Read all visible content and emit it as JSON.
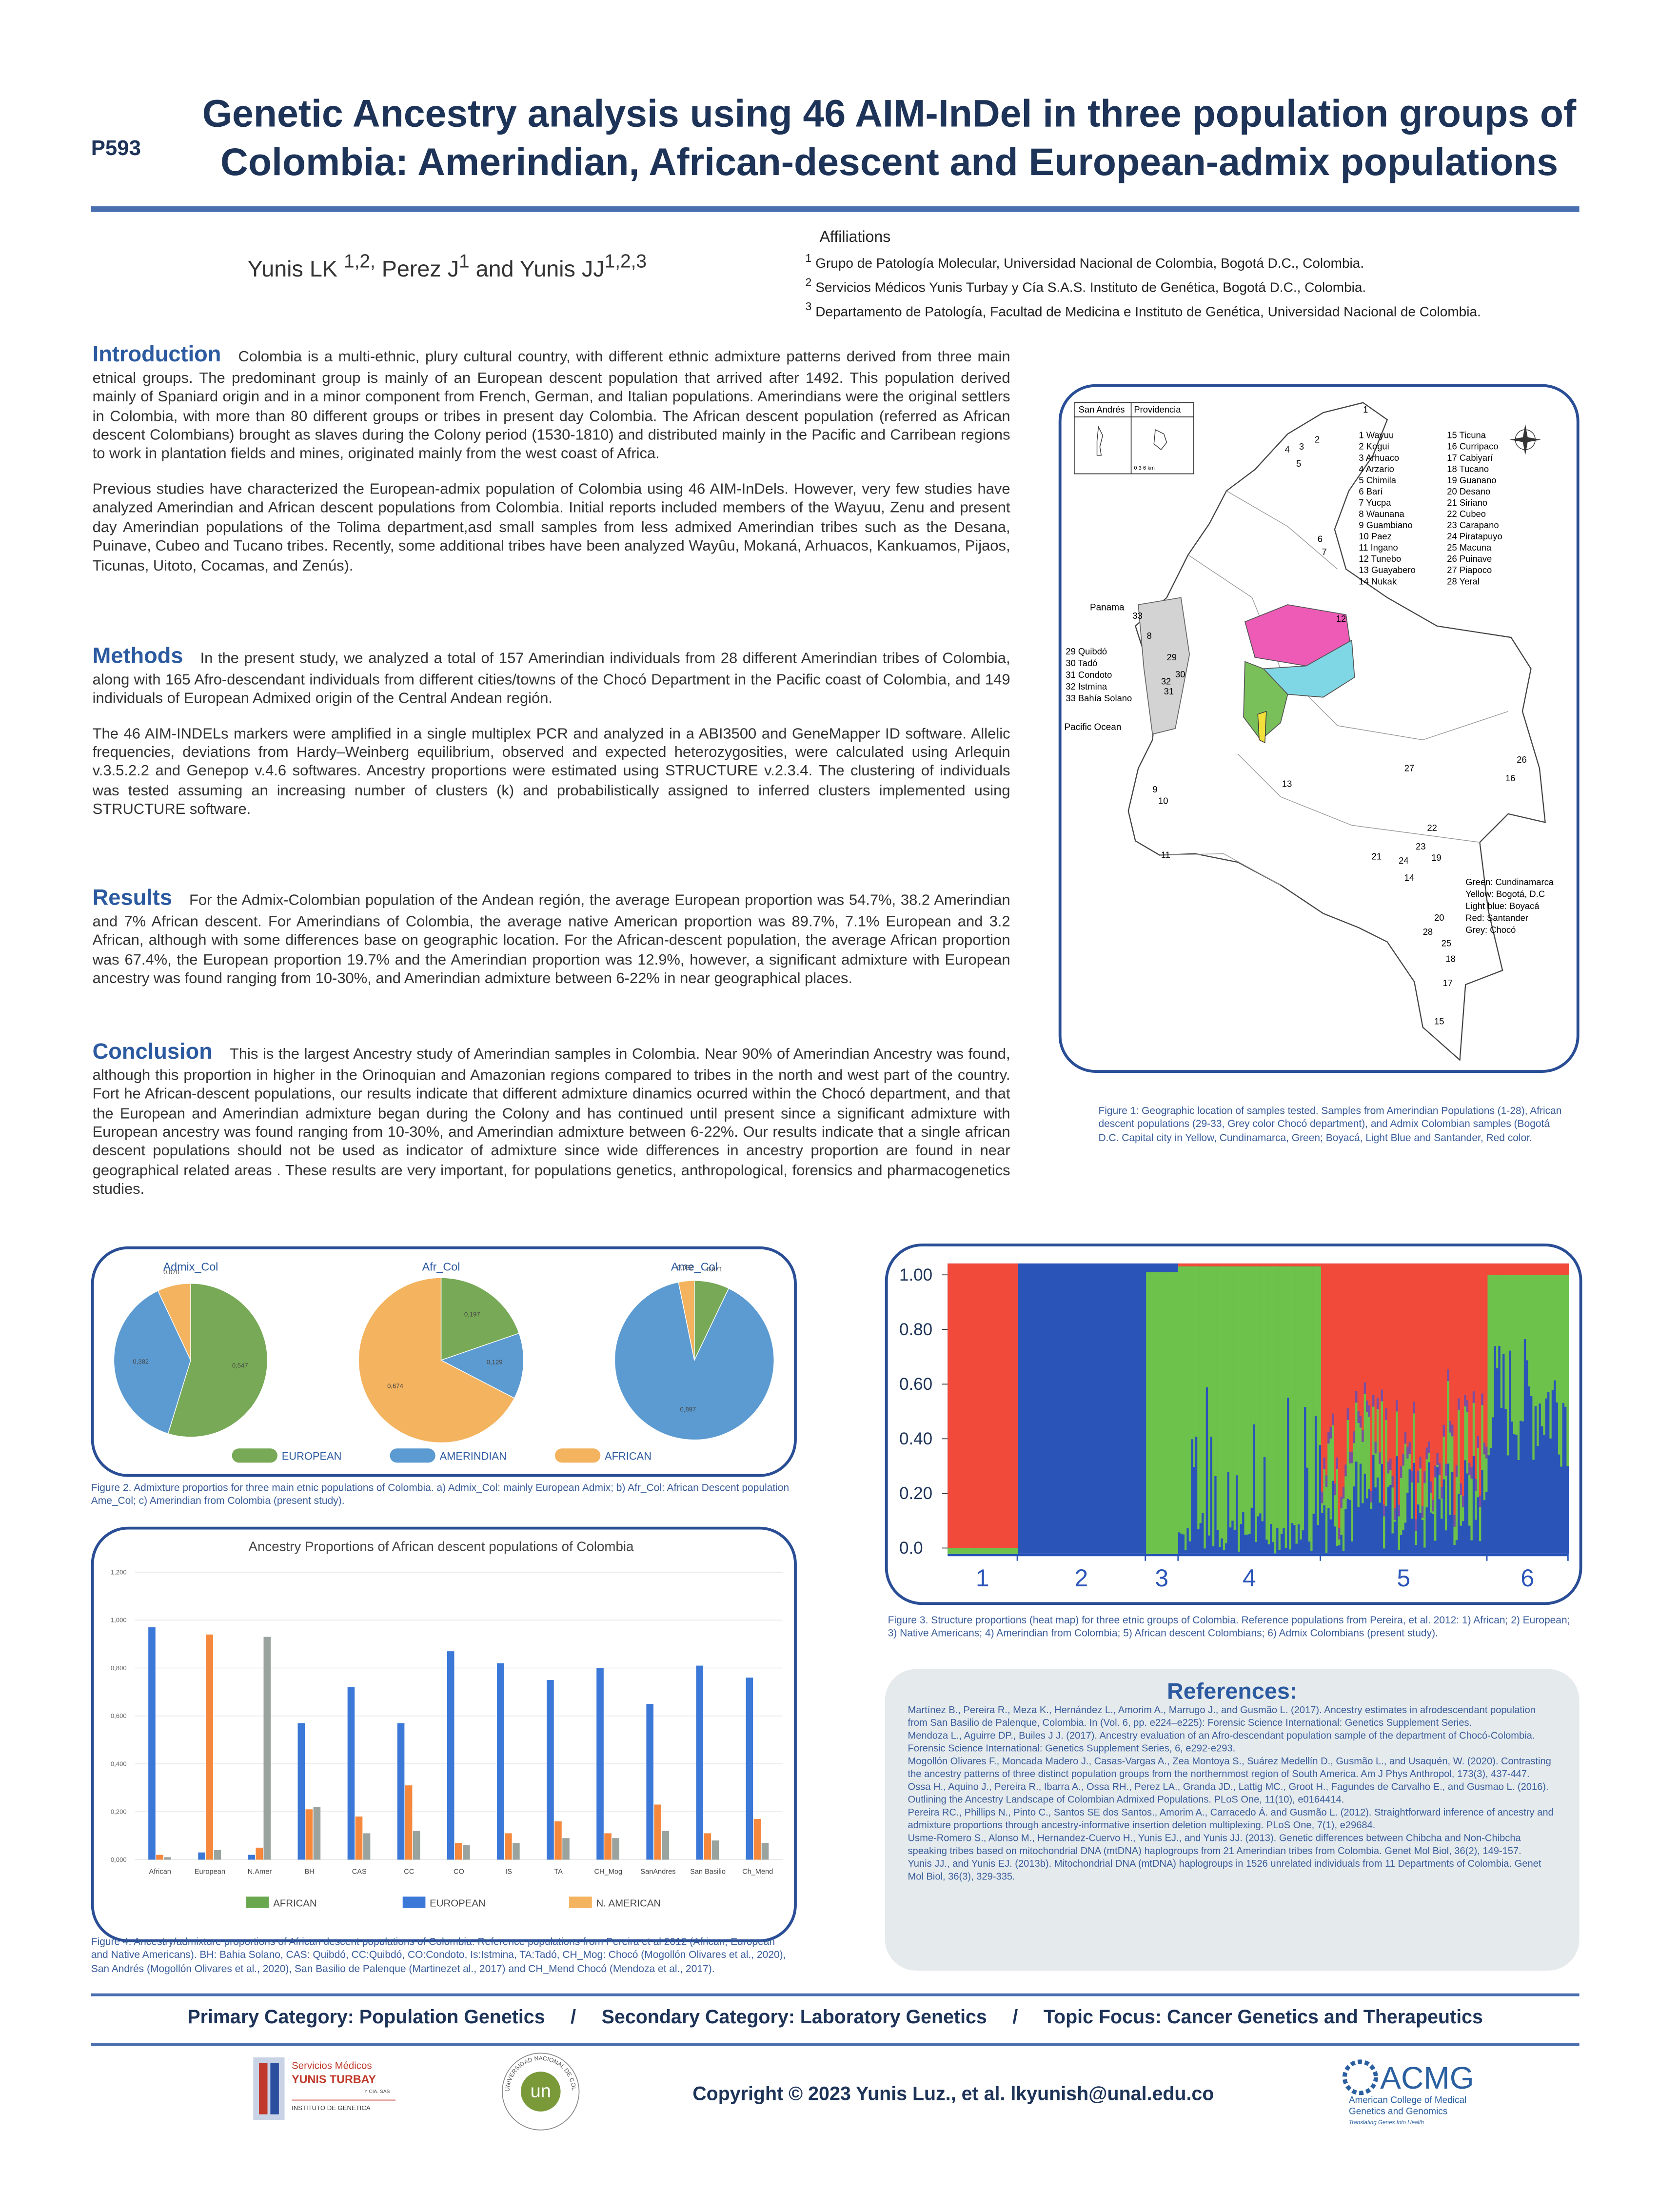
{
  "header": {
    "code": "P593",
    "title_lines": [
      "Genetic Ancestry analysis using 46 AIM-InDel in three population groups of",
      "Colombia: Amerindian, African-descent and European-admix populations"
    ],
    "authors": [
      {
        "text": "Yunis LK ",
        "sup": "1,2,"
      },
      {
        "text": " Perez J",
        "sup": "1"
      },
      {
        "text": " and Yunis JJ",
        "sup": "1,2,3"
      }
    ],
    "affiliations_title": "Affiliations",
    "affiliations": [
      {
        "sup": "1",
        "text": " Grupo de Patología Molecular, Universidad Nacional de Colombia, Bogotá D.C., Colombia."
      },
      {
        "sup": "2",
        "text": " Servicios Médicos Yunis Turbay y Cía S.A.S. Instituto de Genética, Bogotá D.C., Colombia."
      },
      {
        "sup": "3",
        "text": " Departamento de Patología, Facultad de Medicina e Instituto de Genética, Universidad Nacional de Colombia."
      }
    ]
  },
  "sections": [
    {
      "heading": "Introduction",
      "paragraphs": [
        "Colombia is a multi-ethnic, plury cultural country, with different ethnic admixture patterns derived from three main etnical groups. The predominant group is mainly of an European descent population that arrived after 1492. This population derived mainly of Spaniard origin and in a minor component from French, German, and Italian populations. Amerindians were the original settlers in Colombia, with more than 80 different groups or tribes in present day Colombia. The African descent population (referred as African descent Colombians) brought as slaves during the Colony period (1530-1810) and distributed mainly in the Pacific and Carribean regions to work in plantation fields and mines, originated mainly from the west coast of Africa.",
        "Previous studies have characterized the European-admix population of Colombia using 46 AIM-InDels. However, very few studies have analyzed Amerindian and African descent populations from Colombia. Initial reports included members of the Wayuu, Zenu and present day Amerindian populations of the Tolima department,asd small samples from less admixed Amerindian tribes such as the Desana, Puinave, Cubeo and Tucano tribes.  Recently, some  additional tribes have been analyzed Wayûu, Mokaná, Arhuacos, Kankuamos, Pijaos, Ticunas, Uitoto, Cocamas, and Zenús)."
      ]
    },
    {
      "heading": "Methods",
      "paragraphs": [
        "In the present study, we analyzed a total of 157 Amerindian individuals from 28 different Amerindian tribes of Colombia, along with 165 Afro-descendant individuals from different cities/towns of the Chocó Department in the Pacific coast of Colombia, and 149 individuals of European Admixed origin of the Central Andean región.",
        "The 46 AIM-INDELs markers were amplified in a single multiplex PCR and analyzed in a ABI3500 and GeneMapper ID software. Allelic frequencies, deviations from Hardy–Weinberg equilibrium, observed and expected heterozygosities, were calculated using Arlequin v.3.5.2.2 and Genepop v.4.6 softwares. Ancestry proportions were estimated using STRUCTURE v.2.3.4. The clustering of individuals was tested assuming an increasing number of clusters (k) and probabilistically assigned to inferred clusters implemented using STRUCTURE software."
      ]
    },
    {
      "heading": "Results",
      "paragraphs": [
        "For the Admix-Colombian population of the Andean región, the average European proportion was 54.7%, 38.2 Amerindian and 7% African descent. For Amerindians of Colombia, the average native American proportion was 89.7%, 7.1% European and 3.2 African, although with some differences base on geographic location. For the African-descent population, the average African proportion was 67.4%, the European proportion 19.7% and the Amerindian proportion was 12.9%, however,  a significant admixture with European ancestry was found ranging from  10-30%, and Amerindian admixture between 6-22% in near geographical places."
      ]
    },
    {
      "heading": "Conclusion",
      "paragraphs": [
        "This is the largest Ancestry study of Amerindian samples in Colombia. Near 90% of Amerindian Ancestry was found, although this proportion in higher in the Orinoquian and Amazonian regions compared to tribes in the north and west part of the country. Fort he African-descent populations, our results indicate that different admixture dinamics ocurred within the Chocó department, and that the European and Amerindian admixture began during the Colony and has continued until present since a significant admixture with European ancestry was found ranging from  10-30%, and Amerindian admixture between 6-22%. Our results indicate that a single african descent populations should not be used as indicator of admixture since wide differences in ancestry proportion are found in near geographical related areas . These results are very important, for  populations genetics, anthropological, forensics and pharmacogenetics studies."
      ]
    }
  ],
  "map": {
    "inset_labels": [
      "San Andrés",
      "Providencia",
      "0  3  6 km"
    ],
    "place_labels": [
      "Panama",
      "Pacific Ocean"
    ],
    "choco_list": [
      "29 Quibdó",
      "30 Tadó",
      "31 Condoto",
      "32 Istmina",
      "33 Bahía Solano"
    ],
    "tribes": [
      "1 Wayuu",
      "2 Kogui",
      "3 Arhuaco",
      "4 Arzario",
      "5 Chimila",
      "6 Barí",
      "7 Yucpa",
      "8 Waunana",
      "9 Guambiano",
      "10 Paez",
      "11 Ingano",
      "12 Tunebo",
      "13 Guayabero",
      "14 Nukak",
      "15 Ticuna",
      "16 Curripaco",
      "17 Cabiyarí",
      "18 Tucano",
      "19 Guanano",
      "20 Desano",
      "21 Siriano",
      "22 Cubeo",
      "23 Carapano",
      "24 Piratapuyo",
      "25 Macuna",
      "26 Puinave",
      "27 Piapoco",
      "28 Yeral"
    ],
    "color_legend": [
      "Green: Cundinamarca",
      "Yellow: Bogotá, D.C",
      "Light blue: Boyacá",
      "Red: Santander",
      "Grey: Chocó"
    ],
    "points": [
      "1",
      "2",
      "3",
      "4",
      "5",
      "6",
      "7",
      "8",
      "9",
      "10",
      "11",
      "12",
      "13",
      "14",
      "15",
      "16",
      "17",
      "18",
      "19",
      "20",
      "21",
      "22",
      "23",
      "24",
      "25",
      "26",
      "27",
      "28",
      "29",
      "30",
      "31",
      "32",
      "33"
    ],
    "caption": "Figure 1:  Geographic location of samples tested. Samples from Amerindian Populations (1-28), African descent populations (29-33, Grey color Chocó department), and Admix Colombian samples (Bogotá D.C. Capital city in Yellow, Cundinamarca, Green; Boyacá, Light Blue and Santander, Red color."
  },
  "chart_data": [
    {
      "type": "pie",
      "title": "Admix_Col",
      "categories": [
        "EUROPEAN",
        "AMERINDIAN",
        "AFRICAN"
      ],
      "values": [
        0.547,
        0.382,
        0.07
      ],
      "value_labels": [
        "0,547",
        "0,382",
        "0,070"
      ],
      "colors": [
        "#77a956",
        "#5c9bd1",
        "#f4b35f"
      ]
    },
    {
      "type": "pie",
      "title": "Afr_Col",
      "categories": [
        "EUROPEAN",
        "AMERINDIAN",
        "AFRICAN"
      ],
      "values": [
        0.197,
        0.129,
        0.674
      ],
      "value_labels": [
        "0,197",
        "0,129",
        "0,674"
      ],
      "colors": [
        "#77a956",
        "#5c9bd1",
        "#f4b35f"
      ]
    },
    {
      "type": "pie",
      "title": "Ame_Col",
      "categories": [
        "EUROPEAN",
        "AMERINDIAN",
        "AFRICAN"
      ],
      "values": [
        0.071,
        0.897,
        0.032
      ],
      "value_labels": [
        "0,071",
        "0,897",
        "0,032"
      ],
      "colors": [
        "#77a956",
        "#5c9bd1",
        "#f4b35f"
      ],
      "caption": "Figure 2. Admixture proportios for three main etnic populations of Colombia. a) Admix_Col: mainly European Admix; b) Afr_Col: African Descent population Ame_Col; c) Amerindian from Colombia (present study)."
    },
    {
      "type": "bar",
      "title": "Ancestry Proportions of African descent populations of Colombia",
      "categories": [
        "African",
        "European",
        "N.Amer",
        "BH",
        "CAS",
        "CC",
        "CO",
        "IS",
        "TA",
        "CH_Mog",
        "SanAndres",
        "San Basilio",
        "Ch_Mend"
      ],
      "series": [
        {
          "name": "AFRICAN",
          "color": "#3b78d8",
          "legend_color": "#6aa84f",
          "values": [
            0.97,
            0.03,
            0.02,
            0.57,
            0.72,
            0.57,
            0.87,
            0.82,
            0.75,
            0.8,
            0.65,
            0.81,
            0.76
          ]
        },
        {
          "name": "EUROPEAN",
          "color": "#f5883d",
          "legend_color": "#3b78d8",
          "values": [
            0.02,
            0.94,
            0.05,
            0.21,
            0.18,
            0.31,
            0.07,
            0.11,
            0.16,
            0.11,
            0.23,
            0.11,
            0.17
          ]
        },
        {
          "name": "N. AMERICAN",
          "color": "#9aa39e",
          "legend_color": "#f4b35f",
          "values": [
            0.01,
            0.04,
            0.93,
            0.22,
            0.11,
            0.12,
            0.06,
            0.07,
            0.09,
            0.09,
            0.12,
            0.08,
            0.07
          ]
        }
      ],
      "ylim": [
        0,
        1.2
      ],
      "yticks": [
        {
          "value": 0,
          "label": "0,000"
        },
        {
          "value": 0.2,
          "label": "0,200"
        },
        {
          "value": 0.4,
          "label": "0,400"
        },
        {
          "value": 0.6,
          "label": "0,600"
        },
        {
          "value": 0.8,
          "label": "0,800"
        },
        {
          "value": 1,
          "label": "1,000"
        },
        {
          "value": 1.2,
          "label": "1,200"
        }
      ],
      "grid": true,
      "caption": "Figure 4. Ancestry/admixture proportions of African descent populations of Colombia. Reference populations from Pereira et al 2012 (African, European and Native Americans). BH: Bahia Solano, CAS: Quibdó, CC:Quibdó, CO:Condoto, Is:Istmina, TA:Tadó, CH_Mog: Chocó (Mogollón Olivares et al., 2020), San Andrés (Mogollón Olivares et al., 2020), San Basilio de Palenque (Martinezet al., 2017) and CH_Mend Chocó (Mendoza et al., 2017)."
    },
    {
      "type": "structure",
      "categories": [
        "1",
        "2",
        "3",
        "4",
        "5",
        "6"
      ],
      "ylim": [
        0,
        1
      ],
      "yticks": [
        {
          "value": 0,
          "label": "0.0"
        },
        {
          "value": 0.2,
          "label": "0.20"
        },
        {
          "value": 0.4,
          "label": "0.40"
        },
        {
          "value": 0.6,
          "label": "0.60"
        },
        {
          "value": 0.8,
          "label": "0.80"
        },
        {
          "value": 1,
          "label": "1.00"
        }
      ],
      "caption": "Figure 3. Structure proportions (heat map) for three etnic groups of Colombia. Reference populations from Pereira, et al. 2012: 1) African; 2) European; 3) Native Americans; 4) Amerindian from Colombia; 5) African descent Colombians; 6) Admix Colombians (present study)."
    }
  ],
  "references": {
    "title": "References:",
    "items": [
      "Martínez B., Pereira R., Meza K., Hernández L., Amorim A., Marrugo J., and Gusmão L. (2017). Ancestry estimates in afrodescendant population from San Basilio de Palenque, Colombia. In (Vol. 6, pp. e224–e225): Forensic Science International: Genetics Supplement Series.",
      "Mendoza L., Aguirre DP.,    Builes J J. (2017). Ancestry evaluation of an Afro-descendant population sample of the department of Chocó-Colombia. Forensic Science International: Genetics Supplement Series, 6, e292-e293.",
      "Mogollón Olivares F., Moncada Madero J., Casas-Vargas A., Zea Montoya S., Suárez Medellín D., Gusmão L., and Usaquén, W. (2020). Contrasting the ancestry patterns of three distinct population groups from the northernmost region of South America. Am J Phys Anthropol, 173(3), 437-447.",
      "Ossa H., Aquino J., Pereira R., Ibarra A., Ossa RH., Perez LA., Granda JD., Lattig MC., Groot H., Fagundes de Carvalho E., and  Gusmao L. (2016). Outlining the Ancestry Landscape of Colombian Admixed Populations. PLoS One, 11(10), e0164414.",
      "Pereira RC., Phillips N., Pinto C., Santos SE dos Santos., Amorim A., Carracedo Á.  and Gusmão L.  (2012). Straightforward inference of ancestry and admixture proportions through ancestry-informative insertion deletion multiplexing. PLoS One, 7(1), e29684.",
      "Usme-Romero S., Alonso M., Hernandez-Cuervo H., Yunis EJ., and Yunis JJ. (2013). Genetic differences between Chibcha and Non-Chibcha speaking tribes based on mitochondrial DNA (mtDNA) haplogroups from 21 Amerindian tribes from Colombia. Genet Mol Biol, 36(2), 149-157.",
      "Yunis JJ., and  Yunis EJ. (2013b). Mitochondrial DNA (mtDNA) haplogroups in 1526 unrelated individuals from 11 Departments of Colombia. Genet Mol Biol, 36(3), 329-335."
    ]
  },
  "footer": {
    "categories": [
      "Primary Category: Population Genetics",
      "/",
      "Secondary Category: Laboratory Genetics",
      "/",
      "Topic Focus: Cancer Genetics and Therapeutics"
    ],
    "logo1": [
      "Servicios Médicos",
      "YUNIS TURBAY",
      "Y CIA. SAS",
      "INSTITUTO DE GENETICA"
    ],
    "logo2": [
      "un",
      "UNIVERSIDAD NACIONAL DE COLOMBIA"
    ],
    "copyright": "Copyright © 2023 Yunis Luz., et al. lkyunish@unal.edu.co",
    "logo3": [
      "ACMG",
      "American College of Medical",
      "Genetics and Genomics",
      "Translating Genes Into Health"
    ]
  }
}
